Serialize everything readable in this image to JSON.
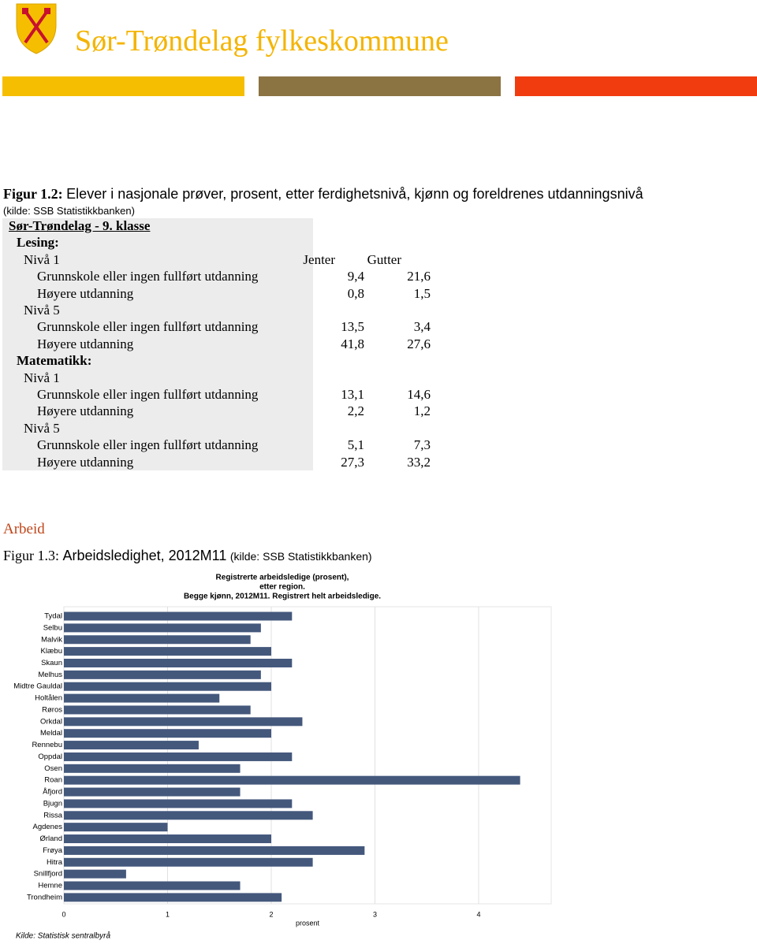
{
  "header": {
    "title": "Sør-Trøndelag fylkeskommune"
  },
  "figure_1_2": {
    "label": "Figur 1.2:",
    "text": "Elever i nasjonale prøver, prosent, etter ferdighetsnivå, kjønn og foreldrenes utdanningsnivå",
    "source": "(kilde: SSB Statistikkbanken)"
  },
  "table": {
    "heading": "Sør-Trøndelag - 9. klasse",
    "column_headers": [
      "Jenter",
      "Gutter"
    ],
    "rows": [
      {
        "label": "Lesing:",
        "level": 0
      },
      {
        "label": "Nivå 1",
        "level": 1
      },
      {
        "label": "Grunnskole eller ingen fullført utdanning",
        "level": 2,
        "values": [
          "9,4",
          "21,6"
        ]
      },
      {
        "label": "Høyere utdanning",
        "level": 2,
        "values": [
          "0,8",
          "1,5"
        ]
      },
      {
        "label": "Nivå 5",
        "level": 1
      },
      {
        "label": "Grunnskole eller ingen fullført utdanning",
        "level": 2,
        "values": [
          "13,5",
          "3,4"
        ]
      },
      {
        "label": "Høyere utdanning",
        "level": 2,
        "values": [
          "41,8",
          "27,6"
        ]
      },
      {
        "label": "Matematikk:",
        "level": 0
      },
      {
        "label": "Nivå 1",
        "level": 1
      },
      {
        "label": "Grunnskole eller ingen fullført utdanning",
        "level": 2,
        "values": [
          "13,1",
          "14,6"
        ]
      },
      {
        "label": "Høyere utdanning",
        "level": 2,
        "values": [
          "2,2",
          "1,2"
        ]
      },
      {
        "label": "Nivå 5",
        "level": 1
      },
      {
        "label": "Grunnskole eller ingen fullført utdanning",
        "level": 2,
        "values": [
          "5,1",
          "7,3"
        ]
      },
      {
        "label": "Høyere utdanning",
        "level": 2,
        "values": [
          "27,3",
          "33,2"
        ]
      }
    ]
  },
  "section": {
    "heading": "Arbeid"
  },
  "figure_1_3": {
    "label": "Figur 1.3:",
    "text": "Arbeidsledighet, 2012M11",
    "source": "(kilde: SSB Statistikkbanken)"
  },
  "chart_data": {
    "type": "hbar",
    "title": [
      "Registrerte arbeidsledige (prosent),",
      "etter region.",
      "Begge kjønn, 2012M11. Registrert helt arbeidsledige."
    ],
    "categories": [
      "Tydal",
      "Selbu",
      "Malvik",
      "Klæbu",
      "Skaun",
      "Melhus",
      "Midtre Gauldal",
      "Holtålen",
      "Røros",
      "Orkdal",
      "Meldal",
      "Rennebu",
      "Oppdal",
      "Osen",
      "Roan",
      "Åfjord",
      "Bjugn",
      "Rissa",
      "Agdenes",
      "Ørland",
      "Frøya",
      "Hitra",
      "Snillfjord",
      "Hemne",
      "Trondheim"
    ],
    "values": [
      2.2,
      1.9,
      1.8,
      2.0,
      2.2,
      1.9,
      2.0,
      1.5,
      1.8,
      2.3,
      2.0,
      1.3,
      2.2,
      1.7,
      4.4,
      1.7,
      2.2,
      2.4,
      1.0,
      2.0,
      2.9,
      2.4,
      0.6,
      1.7,
      2.1
    ],
    "color": "#44587c",
    "xlim": [
      0,
      4.7
    ],
    "xticks": [
      0,
      1,
      2,
      3,
      4
    ],
    "xlabel": "prosent",
    "grid": true,
    "source": "Kilde: Statistisk sentralbyrå"
  }
}
